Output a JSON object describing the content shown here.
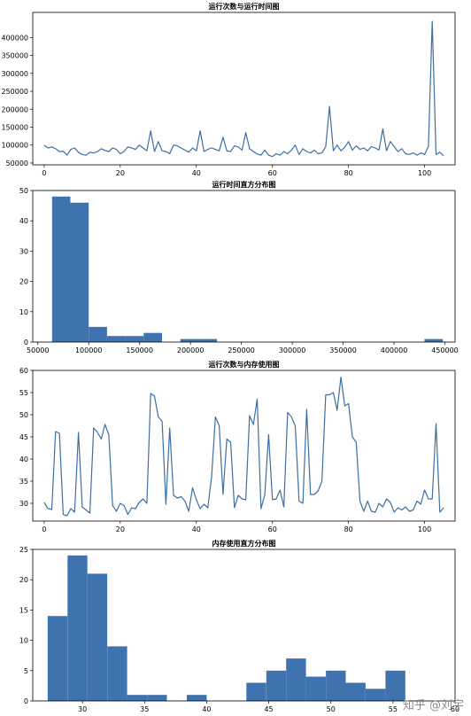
{
  "watermark": "知乎 @刘宇",
  "colors": {
    "line": "#3d6fa3",
    "bar": "#3f73b0",
    "axis": "#000000"
  },
  "chart_data": [
    {
      "type": "line",
      "title": "运行次数与运行时间图",
      "xlabel": "",
      "ylabel": "",
      "xlim": [
        -3,
        108
      ],
      "ylim": [
        45000,
        470000
      ],
      "xticks": [
        0,
        20,
        40,
        60,
        80,
        100
      ],
      "yticks": [
        50000,
        100000,
        150000,
        200000,
        250000,
        300000,
        350000,
        400000
      ],
      "y": [
        100000,
        92000,
        95000,
        90000,
        82000,
        83000,
        72000,
        88000,
        92000,
        80000,
        74000,
        72000,
        80000,
        78000,
        82000,
        90000,
        85000,
        82000,
        92000,
        88000,
        76000,
        82000,
        95000,
        92000,
        88000,
        100000,
        92000,
        84000,
        140000,
        82000,
        110000,
        84000,
        82000,
        76000,
        100000,
        98000,
        92000,
        86000,
        80000,
        92000,
        84000,
        140000,
        82000,
        88000,
        92000,
        88000,
        84000,
        122000,
        84000,
        82000,
        98000,
        95000,
        86000,
        135000,
        90000,
        82000,
        75000,
        72000,
        86000,
        72000,
        68000,
        76000,
        72000,
        82000,
        76000,
        86000,
        100000,
        74000,
        90000,
        82000,
        78000,
        86000,
        76000,
        78000,
        96000,
        208000,
        84000,
        100000,
        84000,
        94000,
        110000,
        86000,
        98000,
        88000,
        92000,
        84000,
        96000,
        92000,
        86000,
        145000,
        84000,
        110000,
        96000,
        82000,
        90000,
        76000,
        74000,
        78000,
        72000,
        78000,
        74000,
        96000,
        445000,
        74000,
        80000,
        70000
      ]
    },
    {
      "type": "bar",
      "title": "运行时间直方分布图",
      "xlabel": "",
      "ylabel": "",
      "xlim": [
        45000,
        460000
      ],
      "ylim": [
        0,
        50
      ],
      "xticks": [
        50000,
        100000,
        150000,
        200000,
        250000,
        300000,
        350000,
        400000,
        450000
      ],
      "yticks": [
        0,
        10,
        20,
        30,
        40,
        50
      ],
      "bins": [
        [
          64000,
          82000,
          48
        ],
        [
          82000,
          100000,
          46
        ],
        [
          100000,
          118000,
          5
        ],
        [
          118000,
          136000,
          2
        ],
        [
          136000,
          154000,
          2
        ],
        [
          154000,
          172000,
          3
        ],
        [
          172000,
          190000,
          0
        ],
        [
          190000,
          208000,
          1
        ],
        [
          208000,
          226000,
          1
        ],
        [
          226000,
          430000,
          0
        ],
        [
          430000,
          448000,
          1
        ]
      ]
    },
    {
      "type": "line",
      "title": "运行次数与内存使用图",
      "xlabel": "",
      "ylabel": "",
      "xlim": [
        -3,
        108
      ],
      "ylim": [
        26,
        60
      ],
      "xticks": [
        0,
        20,
        40,
        60,
        80,
        100
      ],
      "yticks": [
        30,
        35,
        40,
        45,
        50,
        55,
        60
      ],
      "y": [
        30.2,
        28.8,
        28.6,
        46.2,
        45.8,
        27.5,
        27.2,
        28.8,
        28.0,
        46.0,
        29.2,
        28.5,
        27.8,
        47.0,
        46.0,
        44.5,
        47.8,
        45.5,
        29.5,
        28.2,
        30.0,
        29.5,
        27.5,
        29.0,
        28.8,
        30.2,
        31.0,
        30.0,
        54.8,
        54.2,
        49.5,
        48.5,
        29.8,
        47.0,
        31.8,
        31.2,
        31.5,
        30.5,
        28.2,
        33.5,
        30.8,
        28.8,
        29.8,
        29.0,
        36.0,
        49.5,
        47.5,
        32.0,
        44.5,
        43.8,
        29.0,
        31.8,
        31.0,
        30.8,
        49.8,
        47.8,
        53.5,
        28.8,
        32.0,
        45.5,
        30.8,
        31.0,
        33.0,
        29.2,
        50.5,
        49.5,
        47.5,
        30.5,
        30.0,
        51.2,
        32.0,
        32.0,
        32.8,
        35.0,
        54.5,
        54.5,
        55.0,
        51.0,
        58.5,
        52.0,
        52.5,
        45.0,
        43.8,
        30.5,
        28.2,
        30.5,
        28.2,
        28.0,
        30.0,
        29.2,
        31.0,
        30.2,
        28.0,
        29.0,
        28.5,
        29.2,
        28.2,
        28.5,
        30.5,
        29.8,
        33.0,
        31.0,
        31.0,
        48.0,
        28.0,
        29.0
      ]
    },
    {
      "type": "bar",
      "title": "内存使用直方分布图",
      "xlabel": "",
      "ylabel": "",
      "xlim": [
        26.0,
        60.0
      ],
      "ylim": [
        0,
        25
      ],
      "xticks": [
        30,
        35,
        40,
        45,
        50,
        55,
        60
      ],
      "yticks": [
        0,
        5,
        10,
        15,
        20,
        25
      ],
      "bins": [
        [
          27.2,
          28.8,
          14
        ],
        [
          28.8,
          30.4,
          24
        ],
        [
          30.4,
          32.0,
          21
        ],
        [
          32.0,
          33.6,
          9
        ],
        [
          33.6,
          35.2,
          1
        ],
        [
          35.2,
          36.8,
          1
        ],
        [
          36.8,
          38.4,
          0
        ],
        [
          38.4,
          40.0,
          1
        ],
        [
          40.0,
          41.6,
          0
        ],
        [
          41.6,
          43.2,
          0
        ],
        [
          43.2,
          44.8,
          3
        ],
        [
          44.8,
          46.4,
          5
        ],
        [
          46.4,
          48.0,
          7
        ],
        [
          48.0,
          49.6,
          4
        ],
        [
          49.6,
          51.2,
          5
        ],
        [
          51.2,
          52.8,
          3
        ],
        [
          52.8,
          54.4,
          2
        ],
        [
          54.4,
          56.0,
          5
        ]
      ]
    }
  ]
}
